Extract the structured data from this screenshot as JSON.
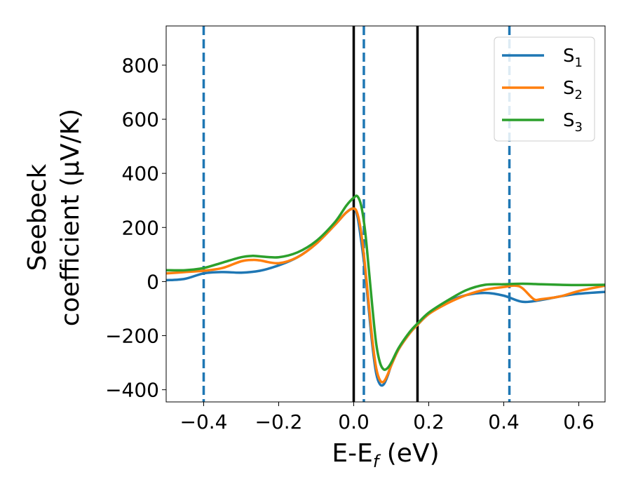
{
  "chart_data": {
    "type": "line",
    "xlabel_main": "E-E",
    "xlabel_sub": "f",
    "xlabel_unit": " (eV)",
    "ylabel_line1": "Seebeck",
    "ylabel_line2": "coefficient  (μV/K)",
    "xlim": [
      -0.5,
      0.67
    ],
    "ylim": [
      -445,
      945
    ],
    "xticks": [
      -0.4,
      -0.2,
      0.0,
      0.2,
      0.4,
      0.6
    ],
    "xtick_labels": [
      "−0.4",
      "−0.2",
      "0.0",
      "0.2",
      "0.4",
      "0.6"
    ],
    "yticks": [
      -400,
      -200,
      0,
      200,
      400,
      600,
      800
    ],
    "ytick_labels": [
      "−400",
      "−200",
      "0",
      "200",
      "400",
      "600",
      "800"
    ],
    "grid": false,
    "legend_position": "top-right",
    "series": [
      {
        "name": "S",
        "sub": "1",
        "color": "#1f77b4",
        "x": [
          -0.5,
          -0.45,
          -0.4,
          -0.35,
          -0.3,
          -0.25,
          -0.2,
          -0.15,
          -0.1,
          -0.05,
          -0.02,
          0.0,
          0.01,
          0.02,
          0.03,
          0.04,
          0.05,
          0.06,
          0.07,
          0.08,
          0.09,
          0.1,
          0.12,
          0.15,
          0.17,
          0.2,
          0.25,
          0.3,
          0.35,
          0.4,
          0.45,
          0.5,
          0.55,
          0.6,
          0.67
        ],
        "y": [
          5,
          10,
          30,
          35,
          33,
          40,
          60,
          90,
          140,
          210,
          255,
          270,
          240,
          150,
          40,
          -100,
          -240,
          -340,
          -380,
          -380,
          -350,
          -310,
          -250,
          -190,
          -160,
          -120,
          -75,
          -50,
          -42,
          -52,
          -75,
          -68,
          -55,
          -45,
          -38
        ]
      },
      {
        "name": "S",
        "sub": "2",
        "color": "#ff7f0e",
        "x": [
          -0.5,
          -0.45,
          -0.4,
          -0.35,
          -0.3,
          -0.27,
          -0.25,
          -0.2,
          -0.15,
          -0.1,
          -0.05,
          -0.02,
          0.0,
          0.01,
          0.02,
          0.03,
          0.04,
          0.05,
          0.06,
          0.07,
          0.08,
          0.09,
          0.1,
          0.12,
          0.15,
          0.17,
          0.2,
          0.25,
          0.3,
          0.35,
          0.4,
          0.43,
          0.45,
          0.48,
          0.5,
          0.55,
          0.6,
          0.67
        ],
        "y": [
          30,
          35,
          40,
          50,
          75,
          80,
          78,
          68,
          90,
          140,
          210,
          255,
          270,
          250,
          180,
          60,
          -80,
          -220,
          -320,
          -365,
          -370,
          -345,
          -310,
          -250,
          -190,
          -160,
          -120,
          -80,
          -50,
          -30,
          -20,
          -15,
          -25,
          -65,
          -65,
          -55,
          -35,
          -15
        ]
      },
      {
        "name": "S",
        "sub": "3",
        "color": "#2ca02c",
        "x": [
          -0.5,
          -0.45,
          -0.4,
          -0.35,
          -0.3,
          -0.27,
          -0.25,
          -0.2,
          -0.15,
          -0.1,
          -0.05,
          -0.02,
          0.0,
          0.01,
          0.02,
          0.03,
          0.04,
          0.05,
          0.06,
          0.07,
          0.08,
          0.09,
          0.1,
          0.12,
          0.15,
          0.17,
          0.2,
          0.25,
          0.3,
          0.35,
          0.4,
          0.45,
          0.5,
          0.55,
          0.6,
          0.67
        ],
        "y": [
          42,
          42,
          50,
          70,
          90,
          95,
          93,
          90,
          108,
          150,
          220,
          280,
          310,
          315,
          280,
          190,
          50,
          -100,
          -230,
          -300,
          -325,
          -320,
          -300,
          -245,
          -185,
          -155,
          -115,
          -70,
          -32,
          -12,
          -10,
          -8,
          -10,
          -12,
          -13,
          -12
        ]
      }
    ],
    "vlines": [
      {
        "x": -0.4,
        "color": "#1f77b4",
        "style": "dashed"
      },
      {
        "x": 0.027,
        "color": "#1f77b4",
        "style": "dashed"
      },
      {
        "x": 0.415,
        "color": "#1f77b4",
        "style": "dashed"
      },
      {
        "x": 0.0,
        "color": "#000000",
        "style": "solid"
      },
      {
        "x": 0.17,
        "color": "#000000",
        "style": "solid"
      }
    ]
  }
}
